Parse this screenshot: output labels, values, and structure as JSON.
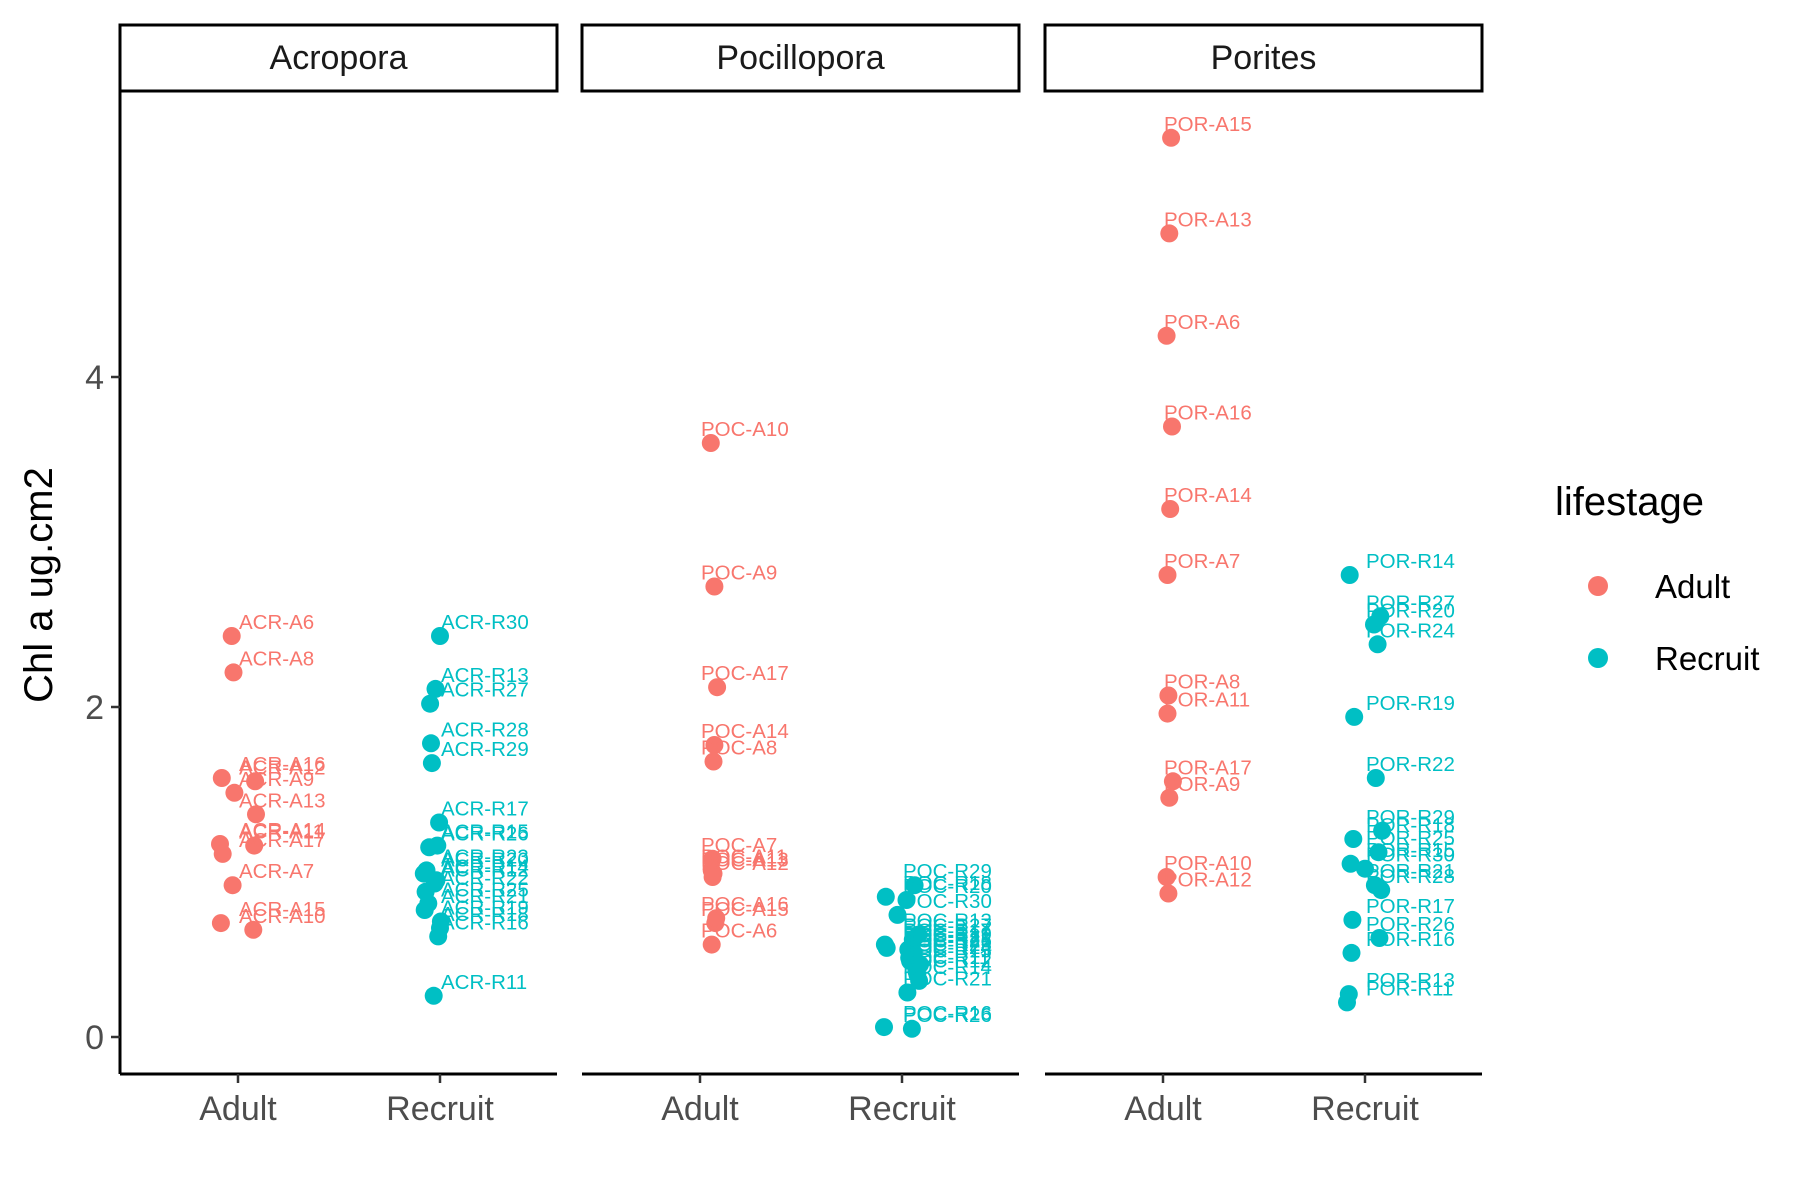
{
  "chart_data": {
    "type": "scatter",
    "ylabel": "Chl a ug.cm2",
    "xlabel": "",
    "ylim": [
      -0.2,
      5.75
    ],
    "y_ticks": [
      0,
      2,
      4
    ],
    "categories": [
      "Adult",
      "Recruit"
    ],
    "facets": [
      "Acropora",
      "Pocillopora",
      "Porites"
    ],
    "legend": {
      "title": "lifestage",
      "position": "right",
      "entries": [
        {
          "name": "Adult",
          "color": "#F8766D"
        },
        {
          "name": "Recruit",
          "color": "#00BFC4"
        }
      ]
    },
    "grid": false,
    "panels": [
      {
        "facet": "Acropora",
        "points": [
          {
            "label": "ACR-A6",
            "group": "Adult",
            "y": 2.43
          },
          {
            "label": "ACR-A8",
            "group": "Adult",
            "y": 2.21
          },
          {
            "label": "ACR-A16",
            "group": "Adult",
            "y": 1.57
          },
          {
            "label": "ACR-A12",
            "group": "Adult",
            "y": 1.55
          },
          {
            "label": "ACR-A9",
            "group": "Adult",
            "y": 1.48
          },
          {
            "label": "ACR-A13",
            "group": "Adult",
            "y": 1.35
          },
          {
            "label": "ACR-A14",
            "group": "Adult",
            "y": 1.17
          },
          {
            "label": "ACR-A11",
            "group": "Adult",
            "y": 1.16
          },
          {
            "label": "ACR-A17",
            "group": "Adult",
            "y": 1.11
          },
          {
            "label": "ACR-A7",
            "group": "Adult",
            "y": 0.92
          },
          {
            "label": "ACR-A15",
            "group": "Adult",
            "y": 0.69
          },
          {
            "label": "ACR-A10",
            "group": "Adult",
            "y": 0.65
          },
          {
            "label": "ACR-R30",
            "group": "Recruit",
            "y": 2.43
          },
          {
            "label": "ACR-R13",
            "group": "Recruit",
            "y": 2.11
          },
          {
            "label": "ACR-R27",
            "group": "Recruit",
            "y": 2.02
          },
          {
            "label": "ACR-R28",
            "group": "Recruit",
            "y": 1.78
          },
          {
            "label": "ACR-R29",
            "group": "Recruit",
            "y": 1.66
          },
          {
            "label": "ACR-R17",
            "group": "Recruit",
            "y": 1.3
          },
          {
            "label": "ACR-R15",
            "group": "Recruit",
            "y": 1.16
          },
          {
            "label": "ACR-R26",
            "group": "Recruit",
            "y": 1.15
          },
          {
            "label": "ACR-R23",
            "group": "Recruit",
            "y": 1.01
          },
          {
            "label": "ACR-R20",
            "group": "Recruit",
            "y": 0.99
          },
          {
            "label": "ACR-R14",
            "group": "Recruit",
            "y": 0.95
          },
          {
            "label": "ACR-R12",
            "group": "Recruit",
            "y": 0.93
          },
          {
            "label": "ACR-R22",
            "group": "Recruit",
            "y": 0.88
          },
          {
            "label": "ACR-R25",
            "group": "Recruit",
            "y": 0.81
          },
          {
            "label": "ACR-R21",
            "group": "Recruit",
            "y": 0.77
          },
          {
            "label": "ACR-R19",
            "group": "Recruit",
            "y": 0.7
          },
          {
            "label": "ACR-R18",
            "group": "Recruit",
            "y": 0.66
          },
          {
            "label": "ACR-R16",
            "group": "Recruit",
            "y": 0.61
          },
          {
            "label": "ACR-R11",
            "group": "Recruit",
            "y": 0.25
          }
        ]
      },
      {
        "facet": "Pocillopora",
        "points": [
          {
            "label": "POC-A10",
            "group": "Adult",
            "y": 3.6
          },
          {
            "label": "POC-A9",
            "group": "Adult",
            "y": 2.73
          },
          {
            "label": "POC-A17",
            "group": "Adult",
            "y": 2.12
          },
          {
            "label": "POC-A14",
            "group": "Adult",
            "y": 1.77
          },
          {
            "label": "POC-A8",
            "group": "Adult",
            "y": 1.67
          },
          {
            "label": "POC-A7",
            "group": "Adult",
            "y": 1.08
          },
          {
            "label": "POC-A11",
            "group": "Adult",
            "y": 1.01
          },
          {
            "label": "POC-A13",
            "group": "Adult",
            "y": 0.99
          },
          {
            "label": "POC-A12",
            "group": "Adult",
            "y": 0.97
          },
          {
            "label": "POC-A16",
            "group": "Adult",
            "y": 0.72
          },
          {
            "label": "POC-A15",
            "group": "Adult",
            "y": 0.69
          },
          {
            "label": "POC-A6",
            "group": "Adult",
            "y": 0.56
          },
          {
            "label": "POC-R29",
            "group": "Recruit",
            "y": 0.92
          },
          {
            "label": "POC-R18",
            "group": "Recruit",
            "y": 0.85
          },
          {
            "label": "POC-R20",
            "group": "Recruit",
            "y": 0.83
          },
          {
            "label": "POC-R30",
            "group": "Recruit",
            "y": 0.74
          },
          {
            "label": "POC-R13",
            "group": "Recruit",
            "y": 0.62
          },
          {
            "label": "POC-R27",
            "group": "Recruit",
            "y": 0.59
          },
          {
            "label": "POC-R17",
            "group": "Recruit",
            "y": 0.56
          },
          {
            "label": "POC-R19",
            "group": "Recruit",
            "y": 0.54
          },
          {
            "label": "POC-R22",
            "group": "Recruit",
            "y": 0.53
          },
          {
            "label": "POC-R28",
            "group": "Recruit",
            "y": 0.51
          },
          {
            "label": "POC-R25",
            "group": "Recruit",
            "y": 0.5
          },
          {
            "label": "POC-R23",
            "group": "Recruit",
            "y": 0.48
          },
          {
            "label": "POC-R24",
            "group": "Recruit",
            "y": 0.46
          },
          {
            "label": "POC-R15",
            "group": "Recruit",
            "y": 0.44
          },
          {
            "label": "POC-R11",
            "group": "Recruit",
            "y": 0.4
          },
          {
            "label": "POC-R12",
            "group": "Recruit",
            "y": 0.38
          },
          {
            "label": "POC-R14",
            "group": "Recruit",
            "y": 0.34
          },
          {
            "label": "POC-R21",
            "group": "Recruit",
            "y": 0.27
          },
          {
            "label": "POC-R16",
            "group": "Recruit",
            "y": 0.06
          },
          {
            "label": "POC-R26",
            "group": "Recruit",
            "y": 0.05
          }
        ]
      },
      {
        "facet": "Porites",
        "points": [
          {
            "label": "POR-A15",
            "group": "Adult",
            "y": 5.45
          },
          {
            "label": "POR-A13",
            "group": "Adult",
            "y": 4.87
          },
          {
            "label": "POR-A6",
            "group": "Adult",
            "y": 4.25
          },
          {
            "label": "POR-A16",
            "group": "Adult",
            "y": 3.7
          },
          {
            "label": "POR-A14",
            "group": "Adult",
            "y": 3.2
          },
          {
            "label": "POR-A7",
            "group": "Adult",
            "y": 2.8
          },
          {
            "label": "POR-A8",
            "group": "Adult",
            "y": 2.07
          },
          {
            "label": "POR-A11",
            "group": "Adult",
            "y": 1.96
          },
          {
            "label": "POR-A17",
            "group": "Adult",
            "y": 1.55
          },
          {
            "label": "POR-A9",
            "group": "Adult",
            "y": 1.45
          },
          {
            "label": "POR-A10",
            "group": "Adult",
            "y": 0.97
          },
          {
            "label": "POR-A12",
            "group": "Adult",
            "y": 0.87
          },
          {
            "label": "POR-R14",
            "group": "Recruit",
            "y": 2.8
          },
          {
            "label": "POR-R27",
            "group": "Recruit",
            "y": 2.55
          },
          {
            "label": "POR-R20",
            "group": "Recruit",
            "y": 2.5
          },
          {
            "label": "POR-R24",
            "group": "Recruit",
            "y": 2.38
          },
          {
            "label": "POR-R19",
            "group": "Recruit",
            "y": 1.94
          },
          {
            "label": "POR-R22",
            "group": "Recruit",
            "y": 1.57
          },
          {
            "label": "POR-R29",
            "group": "Recruit",
            "y": 1.25
          },
          {
            "label": "POR-R18",
            "group": "Recruit",
            "y": 1.2
          },
          {
            "label": "POR-R25",
            "group": "Recruit",
            "y": 1.12
          },
          {
            "label": "POR-R15",
            "group": "Recruit",
            "y": 1.05
          },
          {
            "label": "POR-R30",
            "group": "Recruit",
            "y": 1.02
          },
          {
            "label": "POR-R21",
            "group": "Recruit",
            "y": 0.92
          },
          {
            "label": "POR-R28",
            "group": "Recruit",
            "y": 0.89
          },
          {
            "label": "POR-R17",
            "group": "Recruit",
            "y": 0.71
          },
          {
            "label": "POR-R26",
            "group": "Recruit",
            "y": 0.6
          },
          {
            "label": "POR-R16",
            "group": "Recruit",
            "y": 0.51
          },
          {
            "label": "POR-R13",
            "group": "Recruit",
            "y": 0.26
          },
          {
            "label": "POR-R11",
            "group": "Recruit",
            "y": 0.21
          }
        ]
      }
    ]
  }
}
